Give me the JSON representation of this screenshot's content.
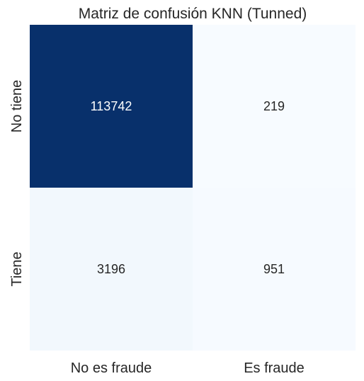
{
  "chart_data": {
    "type": "heatmap",
    "title": "Matriz de confusión  KNN (Tunned)",
    "xlabel": "",
    "ylabel": "",
    "x_categories": [
      "No es fraude",
      "Es fraude"
    ],
    "y_categories": [
      "No tiene",
      "Tiene"
    ],
    "values": [
      [
        113742,
        219
      ],
      [
        3196,
        951
      ]
    ],
    "colormap": "Blues",
    "colorbar": false,
    "grid": false,
    "colors": {
      "high": "#08306b",
      "low": "#f7fbff",
      "text_on_dark": "#ffffff",
      "text_on_light": "#262626"
    }
  }
}
